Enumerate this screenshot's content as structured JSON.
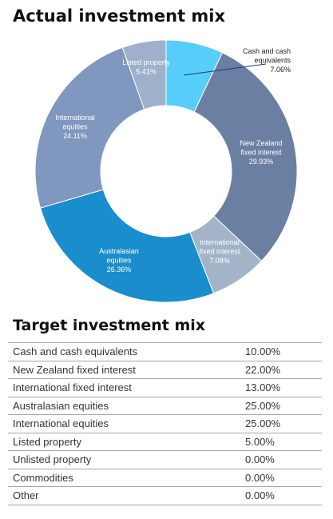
{
  "actual": {
    "title": "Actual investment mix"
  },
  "chart_data": {
    "type": "pie",
    "title": "Actual investment mix",
    "slices": [
      {
        "label": [
          "Cash and cash",
          "equivalents"
        ],
        "value_label": "7.06%",
        "value": 7.06,
        "color": "#57cdfa",
        "outside": true
      },
      {
        "label": [
          "New Zealand",
          "fixed interest"
        ],
        "value_label": "29.93%",
        "value": 29.93,
        "color": "#6b7fa3"
      },
      {
        "label": [
          "International",
          "fixed interest"
        ],
        "value_label": "7.08%",
        "value": 7.08,
        "color": "#a3b4c8"
      },
      {
        "label": [
          "Australasian",
          "equities"
        ],
        "value_label": "26.36%",
        "value": 26.36,
        "color": "#1a8dcc"
      },
      {
        "label": [
          "International",
          "equities"
        ],
        "value_label": "24.11%",
        "value": 24.11,
        "color": "#8097bf"
      },
      {
        "label": [
          "Listed property"
        ],
        "value_label": "5.41%",
        "value": 5.41,
        "color": "#9fb0ca"
      }
    ]
  },
  "target": {
    "title": "Target investment mix",
    "rows": [
      {
        "name": "Cash and cash equivalents",
        "value": "10.00%"
      },
      {
        "name": "New Zealand fixed interest",
        "value": "22.00%"
      },
      {
        "name": "International fixed interest",
        "value": "13.00%"
      },
      {
        "name": "Australasian equities",
        "value": "25.00%"
      },
      {
        "name": "International equities",
        "value": "25.00%"
      },
      {
        "name": "Listed property",
        "value": "5.00%"
      },
      {
        "name": "Unlisted property",
        "value": "0.00%"
      },
      {
        "name": "Commodities",
        "value": "0.00%"
      },
      {
        "name": "Other",
        "value": "0.00%"
      }
    ]
  }
}
